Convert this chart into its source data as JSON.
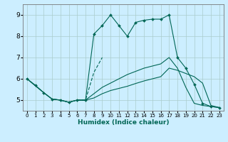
{
  "xlabel": "Humidex (Indice chaleur)",
  "background_color": "#cceeff",
  "grid_color": "#aacccc",
  "line_color": "#006655",
  "xlim": [
    -0.5,
    23.5
  ],
  "ylim": [
    4.5,
    9.5
  ],
  "yticks": [
    5,
    6,
    7,
    8,
    9
  ],
  "xticks": [
    0,
    1,
    2,
    3,
    4,
    5,
    6,
    7,
    8,
    9,
    10,
    11,
    12,
    13,
    14,
    15,
    16,
    17,
    18,
    19,
    20,
    21,
    22,
    23
  ],
  "line1_x": [
    0,
    1,
    2,
    3,
    4,
    5,
    6,
    7,
    8,
    9,
    10,
    11,
    12,
    13,
    14,
    15,
    16,
    17,
    18,
    19,
    20,
    21,
    22,
    23
  ],
  "line1_y": [
    6.0,
    5.7,
    5.35,
    5.05,
    5.0,
    4.9,
    5.0,
    5.0,
    8.1,
    8.5,
    9.0,
    8.5,
    8.0,
    8.65,
    8.75,
    8.8,
    8.8,
    9.0,
    7.0,
    6.5,
    5.75,
    4.85,
    4.7,
    4.65
  ],
  "line2_x": [
    0,
    2,
    3,
    4,
    5,
    6,
    7,
    8,
    9,
    10,
    11,
    12,
    13,
    14,
    15,
    16,
    17,
    18,
    19,
    20,
    21,
    22,
    23
  ],
  "line2_y": [
    6.0,
    5.35,
    5.05,
    5.0,
    4.9,
    5.0,
    5.0,
    5.3,
    5.6,
    5.8,
    6.0,
    6.2,
    6.35,
    6.5,
    6.6,
    6.7,
    7.0,
    6.5,
    5.6,
    4.85,
    4.75,
    4.7,
    4.65
  ],
  "line3_x": [
    0,
    2,
    3,
    4,
    5,
    6,
    7,
    8,
    9,
    10,
    11,
    12,
    13,
    14,
    15,
    16,
    17,
    18,
    19,
    20,
    21,
    22,
    23
  ],
  "line3_y": [
    6.0,
    5.35,
    5.05,
    5.0,
    4.9,
    5.0,
    5.0,
    5.1,
    5.3,
    5.45,
    5.55,
    5.65,
    5.78,
    5.9,
    6.0,
    6.1,
    6.5,
    6.4,
    6.25,
    6.1,
    5.8,
    4.75,
    4.65
  ],
  "line4_x": [
    6,
    7,
    8,
    9
  ],
  "line4_y": [
    5.0,
    5.0,
    6.3,
    7.0
  ],
  "line1_marker_x": [
    0,
    1,
    2,
    3,
    4,
    5,
    6,
    7,
    8,
    9,
    10,
    11,
    12,
    13,
    14,
    15,
    16,
    17,
    18,
    19,
    20,
    21,
    22,
    23
  ],
  "line1_marker_y": [
    6.0,
    5.7,
    5.35,
    5.05,
    5.0,
    4.9,
    5.0,
    5.0,
    8.1,
    8.5,
    9.0,
    8.5,
    8.0,
    8.65,
    8.75,
    8.8,
    8.8,
    9.0,
    7.0,
    6.5,
    5.75,
    4.85,
    4.7,
    4.65
  ]
}
